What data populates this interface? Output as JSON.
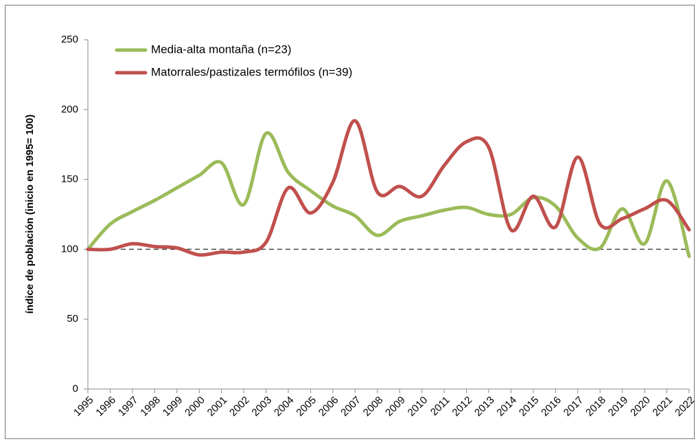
{
  "chart_data": {
    "type": "line",
    "y_label": "índice de población (inicio en 1995= 100)",
    "categories": [
      "1995",
      "1996",
      "1997",
      "1998",
      "1999",
      "2000",
      "2001",
      "2002",
      "2003",
      "2004",
      "2005",
      "2006",
      "2007",
      "2008",
      "2009",
      "2010",
      "2011",
      "2012",
      "2013",
      "2014",
      "2015",
      "2016",
      "2017",
      "2018",
      "2019",
      "2020",
      "2021",
      "2022"
    ],
    "series": [
      {
        "name": "Media-alta montaña (n=23)",
        "color": "#9bbb59",
        "values": [
          100,
          118,
          127,
          135,
          144,
          153,
          162,
          132,
          183,
          155,
          142,
          131,
          124,
          110,
          120,
          124,
          128,
          130,
          125,
          125,
          137,
          131,
          108,
          101,
          129,
          104,
          149,
          95
        ]
      },
      {
        "name": "Matorrales/pastizales termófilos (n=39)",
        "color": "#c0504d",
        "values": [
          100,
          100,
          104,
          102,
          101,
          96,
          98,
          98,
          105,
          144,
          126,
          148,
          192,
          141,
          145,
          138,
          160,
          177,
          173,
          114,
          138,
          116,
          166,
          118,
          122,
          129,
          135,
          114
        ]
      }
    ],
    "reference_line": 100,
    "ylim": [
      0,
      250
    ],
    "yticks": [
      0,
      50,
      100,
      150,
      200,
      250
    ],
    "grid": false,
    "smooth": true
  }
}
